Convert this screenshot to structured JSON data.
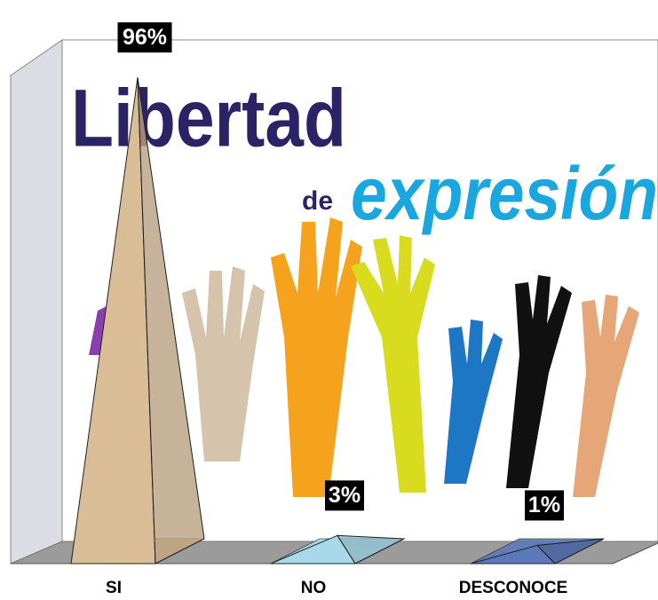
{
  "chart_data": {
    "type": "pyramid",
    "categories": [
      "SI",
      "NO",
      "DESCONOCE"
    ],
    "values": [
      96,
      3,
      1
    ],
    "value_labels": [
      "96%",
      "3%",
      "1%"
    ],
    "colors": [
      "#d8bd96",
      "#a8d9ea",
      "#5b79b9"
    ],
    "background_text": [
      "Libertad",
      "de",
      "expresión"
    ]
  }
}
